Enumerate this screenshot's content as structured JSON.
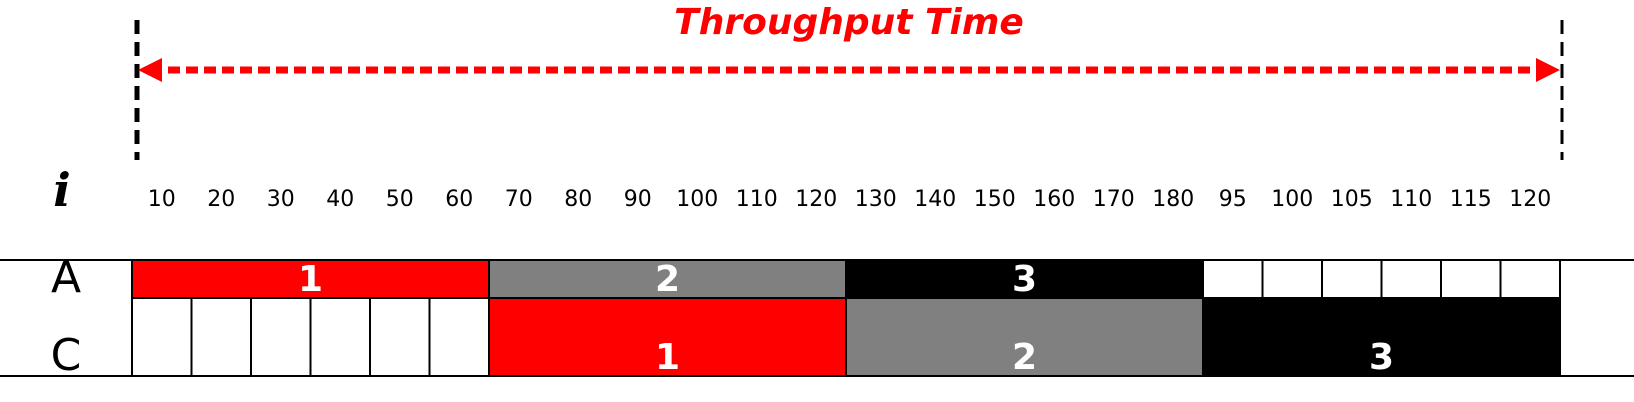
{
  "title": "Throughput Time",
  "column_header": "i",
  "ticks": [
    "10",
    "20",
    "30",
    "40",
    "50",
    "60",
    "70",
    "80",
    "90",
    "100",
    "110",
    "120",
    "130",
    "140",
    "150",
    "160",
    "170",
    "180",
    "95",
    "100",
    "105",
    "110",
    "115",
    "120"
  ],
  "rows": [
    {
      "label": "A",
      "blocks": [
        {
          "label": "1",
          "start": 0,
          "span": 6,
          "color": "#ff0000"
        },
        {
          "label": "2",
          "start": 6,
          "span": 6,
          "color": "#808080"
        },
        {
          "label": "3",
          "start": 12,
          "span": 6,
          "color": "#000000"
        }
      ],
      "empty": [
        18,
        19,
        20,
        21,
        22,
        23
      ]
    },
    {
      "label": "C",
      "blocks": [
        {
          "label": "1",
          "start": 6,
          "span": 6,
          "color": "#ff0000"
        },
        {
          "label": "2",
          "start": 12,
          "span": 6,
          "color": "#808080"
        },
        {
          "label": "3",
          "start": 18,
          "span": 6,
          "color": "#000000"
        }
      ],
      "empty": [
        0,
        1,
        2,
        3,
        4,
        5
      ]
    }
  ],
  "colors": {
    "accent": "#ff0000",
    "gray": "#808080",
    "black": "#000000"
  }
}
